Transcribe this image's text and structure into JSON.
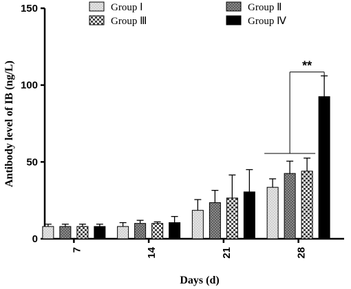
{
  "chart_data": {
    "type": "bar",
    "xlabel": "Days (d)",
    "ylabel": "Antibody level of IB (ng/L)",
    "ylim": [
      0,
      150
    ],
    "yticks": [
      0,
      50,
      100,
      150
    ],
    "categories": [
      "7",
      "14",
      "21",
      "28"
    ],
    "series": [
      {
        "name": "Group Ⅰ",
        "values": [
          8,
          8,
          18.5,
          33.5
        ],
        "errors": [
          1.5,
          2.5,
          7,
          5.5
        ],
        "color": "#e6e6e6",
        "pattern": "dots-light"
      },
      {
        "name": "Group Ⅱ",
        "values": [
          8,
          10,
          23.5,
          42.5
        ],
        "errors": [
          1.5,
          2,
          8,
          8
        ],
        "color": "#8c8c8c",
        "pattern": "dots-dark"
      },
      {
        "name": "Group Ⅲ",
        "values": [
          8,
          10,
          26.5,
          44
        ],
        "errors": [
          1.5,
          1,
          15,
          8.5
        ],
        "color": "#ffffff",
        "pattern": "checker"
      },
      {
        "name": "Group Ⅳ",
        "values": [
          8,
          10.5,
          30.5,
          92.5
        ],
        "errors": [
          1.5,
          4,
          14.5,
          13.5
        ],
        "color": "#000000",
        "pattern": "solid"
      }
    ],
    "annotation": {
      "text": "**",
      "category": "28"
    },
    "legend_position": "top"
  }
}
